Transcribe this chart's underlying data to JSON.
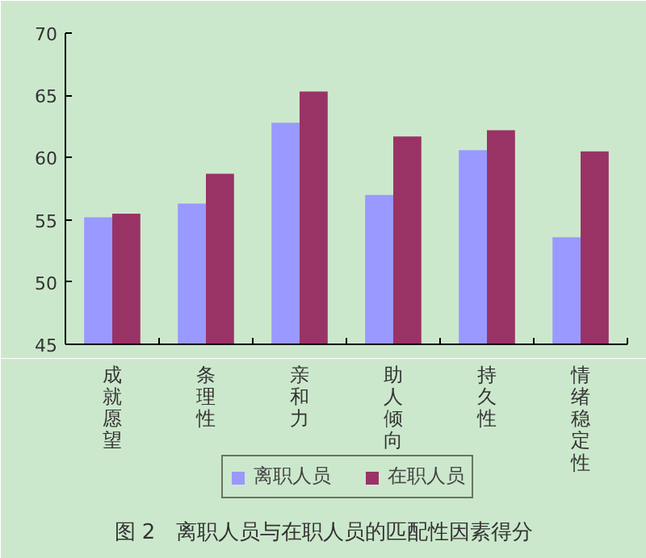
{
  "chart_data": {
    "type": "bar",
    "title": "图 2　离职人员与在职人员的匹配性因素得分",
    "categories": [
      "成就愿望",
      "条理性",
      "亲和力",
      "助人倾向",
      "持久性",
      "情绪稳定性"
    ],
    "series": [
      {
        "name": "离职人员",
        "color": "#9999ff",
        "values": [
          55.2,
          56.3,
          62.8,
          57.0,
          60.6,
          53.6
        ]
      },
      {
        "name": "在职人员",
        "color": "#993366",
        "values": [
          55.5,
          58.7,
          65.3,
          61.7,
          62.2,
          60.5
        ]
      }
    ],
    "ylim": [
      45,
      70
    ],
    "yticks": [
      45,
      50,
      55,
      60,
      65,
      70
    ],
    "grid": false,
    "legend": "bottom"
  }
}
